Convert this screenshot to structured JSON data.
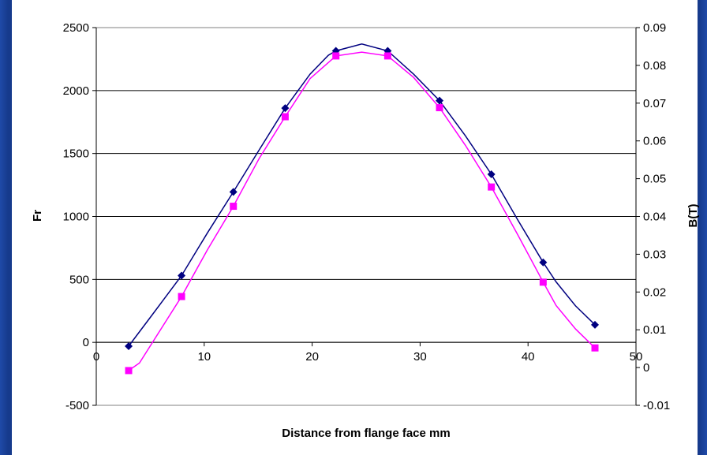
{
  "chart_data": {
    "type": "line",
    "title": "",
    "xlabel": "Distance from flange face mm",
    "ylabel": "Fr",
    "y2label": "B(T)",
    "xlim": [
      0,
      50
    ],
    "ylim": [
      -500,
      2500
    ],
    "y2lim": [
      -0.01,
      0.09
    ],
    "x_ticks": [
      "0",
      "10",
      "20",
      "30",
      "40",
      "50"
    ],
    "y_ticks": [
      "-500",
      "0",
      "500",
      "1000",
      "1500",
      "2000",
      "2500"
    ],
    "y2_ticks": [
      "-0.01",
      "0",
      "0.01",
      "0.02",
      "0.03",
      "0.04",
      "0.05",
      "0.06",
      "0.07",
      "0.08",
      "0.09"
    ],
    "grid": "horizontal",
    "legend": "none",
    "series": [
      {
        "axis": "left",
        "color": "#000080",
        "marker": "diamond",
        "x": [
          3,
          7.9,
          12.7,
          17.5,
          22.2,
          27,
          31.8,
          36.6,
          41.4,
          46.2
        ],
        "values": [
          -30,
          530,
          1195,
          1860,
          2315,
          2315,
          1920,
          1335,
          635,
          140
        ],
        "curve_x": [
          3,
          5.2,
          7.9,
          10.3,
          12.7,
          15.1,
          17.5,
          19.8,
          21.5,
          22.2,
          24.6,
          27,
          29.4,
          31.8,
          34.2,
          36.6,
          39,
          41.4,
          42.6,
          44.4,
          46.2
        ],
        "curve_y": [
          -30,
          220,
          530,
          870,
          1195,
          1530,
          1860,
          2130,
          2280,
          2315,
          2370,
          2315,
          2130,
          1920,
          1640,
          1335,
          980,
          635,
          480,
          290,
          140
        ]
      },
      {
        "axis": "right",
        "color": "#ff00ff",
        "marker": "square",
        "x": [
          3,
          7.9,
          12.7,
          17.5,
          22.2,
          27,
          31.8,
          36.6,
          41.4,
          46.2
        ],
        "values": [
          -0.0008,
          0.0188,
          0.0427,
          0.0664,
          0.0825,
          0.0825,
          0.0688,
          0.0478,
          0.0226,
          0.0052
        ],
        "curve_x": [
          3,
          4,
          7.9,
          10.3,
          12.7,
          15.1,
          17.5,
          19.8,
          22.2,
          24.6,
          27,
          29.4,
          31.8,
          34.2,
          36.6,
          39,
          41.4,
          42.6,
          44.4,
          46.2
        ],
        "curve_y": [
          -0.0008,
          0.0012,
          0.0188,
          0.0312,
          0.0427,
          0.0554,
          0.0664,
          0.0765,
          0.0825,
          0.0835,
          0.0825,
          0.0768,
          0.0688,
          0.0588,
          0.0478,
          0.0354,
          0.0226,
          0.0164,
          0.0102,
          0.0052
        ]
      }
    ]
  }
}
